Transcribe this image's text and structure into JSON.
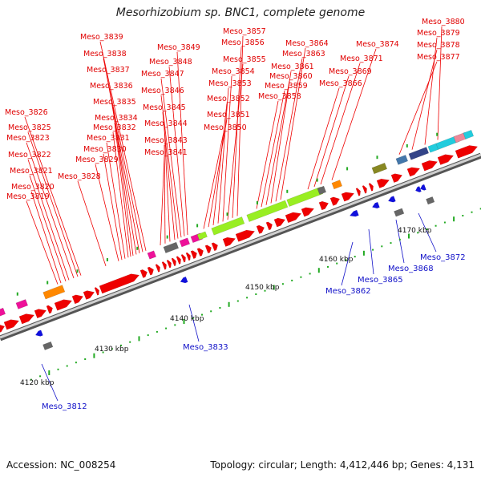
{
  "title": "Mesorhizobium sp. BNC1, complete genome",
  "accession": "Accession: NC_008254",
  "summary": "Topology: circular; Length: 4,412,446 bp; Genes: 4,131",
  "colors": {
    "forward": "#ee0000",
    "reverse": "#1010dd",
    "pseudo": "#666666",
    "rna": "#ee1199",
    "green": "#99ee22",
    "orange": "#ff8800",
    "olive": "#888822",
    "teal": "#22ccdd",
    "steel": "#4477aa",
    "navy": "#334488",
    "pink": "#ee8899",
    "backbone": "#999999",
    "tick": "#22aa22"
  },
  "scale_labels": [
    {
      "text": "4120 kbp",
      "kbp": 4120
    },
    {
      "text": "4130 kbp",
      "kbp": 4130
    },
    {
      "text": "4140 kbp",
      "kbp": 4140
    },
    {
      "text": "4150 kbp",
      "kbp": 4150
    },
    {
      "text": "4160 kbp",
      "kbp": 4160
    },
    {
      "text": "4170 kbp",
      "kbp": 4170
    }
  ],
  "upper_labels": [
    "Meso_3819",
    "Meso_3820",
    "Meso_3821",
    "Meso_3822",
    "Meso_3823",
    "Meso_3825",
    "Meso_3826",
    "Meso_3828",
    "Meso_3829",
    "Meso_3830",
    "Meso_3831",
    "Meso_3832",
    "Meso_3834",
    "Meso_3835",
    "Meso_3836",
    "Meso_3837",
    "Meso_3838",
    "Meso_3839",
    "Meso_3841",
    "Meso_3843",
    "Meso_3844",
    "Meso_3845",
    "Meso_3846",
    "Meso_3847",
    "Meso_3848",
    "Meso_3849",
    "Meso_3850",
    "Meso_3851",
    "Meso_3852",
    "Meso_3853",
    "Meso_3854",
    "Meso_3855",
    "Meso_3856",
    "Meso_3857",
    "Meso_3858",
    "Meso_3859",
    "Meso_3860",
    "Meso_3861",
    "Meso_3863",
    "Meso_3864",
    "Meso_3866",
    "Meso_3869",
    "Meso_3871",
    "Meso_3874",
    "Meso_3877",
    "Meso_3878",
    "Meso_3879",
    "Meso_3880"
  ],
  "lower_labels": [
    "Meso_3812",
    "Meso_3833",
    "Meso_3862",
    "Meso_3865",
    "Meso_3868",
    "Meso_3872"
  ]
}
